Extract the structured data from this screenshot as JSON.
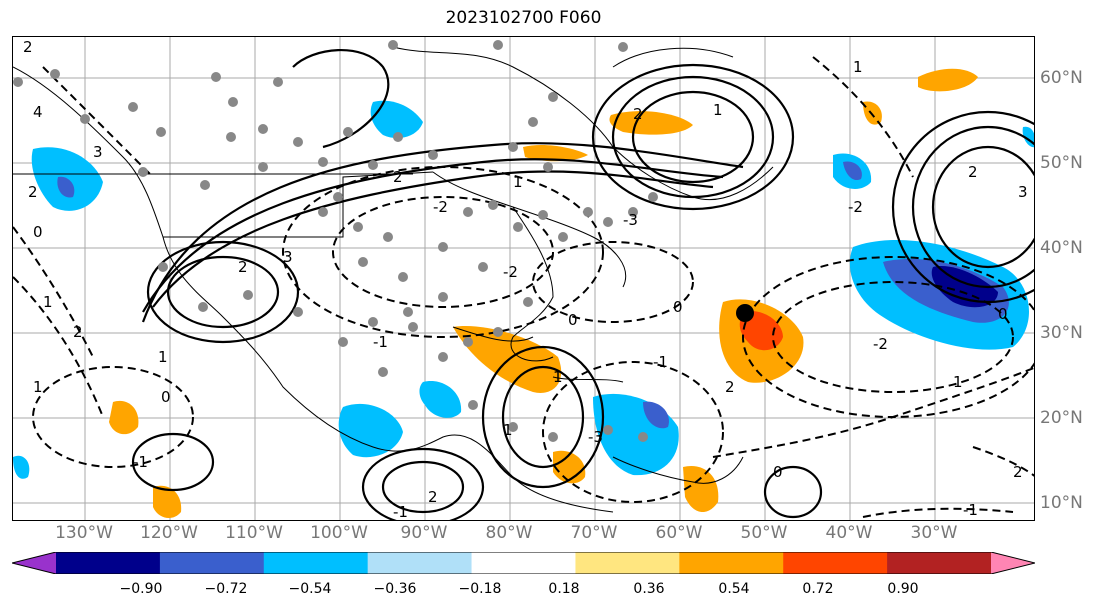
{
  "title": "2023102700 F060",
  "lon_labels": [
    "130°W",
    "120°W",
    "110°W",
    "100°W",
    "90°W",
    "80°W",
    "70°W",
    "60°W",
    "50°W",
    "40°W",
    "30°W"
  ],
  "lat_labels": [
    "60°N",
    "50°N",
    "40°N",
    "30°N",
    "20°N",
    "10°N"
  ],
  "colorbar": {
    "ticks": [
      "−0.90",
      "−0.72",
      "−0.54",
      "−0.36",
      "−0.18",
      "0.18",
      "0.36",
      "0.54",
      "0.72",
      "0.90"
    ],
    "colors": [
      "#9932cc",
      "#00008b",
      "#3a5fcd",
      "#00bfff",
      "#b0e0f8",
      "#ffffff",
      "#ffe680",
      "#ffa500",
      "#ff4500",
      "#b22222",
      "#ff85b3"
    ]
  },
  "contour_labels": [
    "2",
    "4",
    "3",
    "2",
    "0",
    "1",
    "2",
    "1",
    "0",
    "2",
    "1",
    "-1",
    "-2",
    "2",
    "-3",
    "1",
    "2",
    "1",
    "0",
    "-1",
    "2",
    "-2",
    "1",
    "2",
    "2",
    "-1",
    "-3",
    "0",
    "2",
    "-2",
    "3",
    "1",
    "3",
    "1",
    "0",
    "-2",
    "-1",
    "0",
    "-1",
    "1"
  ],
  "legend_colors": {
    "land_border": "#000000",
    "station_marker": "#888888",
    "highlight_marker": "#000000"
  }
}
